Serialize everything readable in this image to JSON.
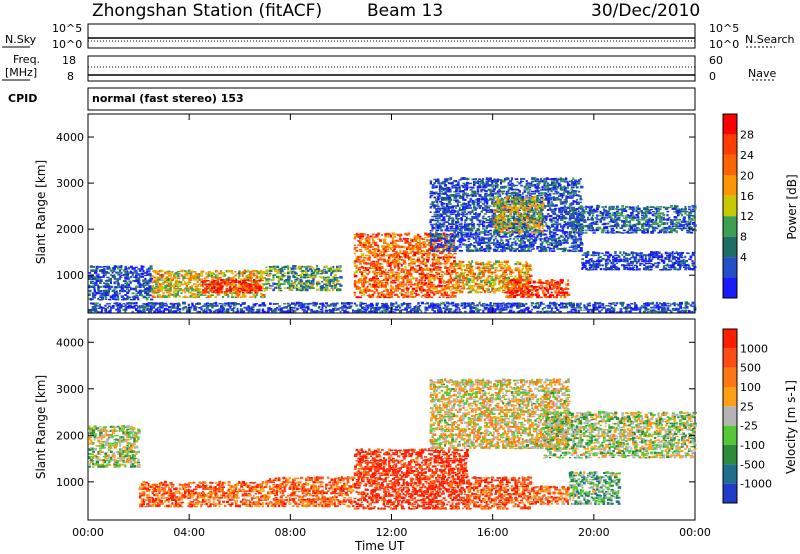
{
  "header": {
    "station": "Zhongshan Station (fitACF)",
    "beam": "Beam 13",
    "date": "30/Dec/2010"
  },
  "strips": {
    "nsky_label": "N.Sky",
    "nsearch_label": "N.Search",
    "nsky_ticks": [
      "10^5",
      "10^0"
    ],
    "nsearch_ticks": [
      "10^5",
      "10^0"
    ],
    "freq_label": "Freq.",
    "freq_unit": "[MHz]",
    "freq_ticks": [
      "18",
      "8"
    ],
    "nave_label": "Nave",
    "nave_ticks": [
      "60",
      "0"
    ],
    "cpid_label": "CPID",
    "cpid_text": "normal (fast stereo) 153"
  },
  "colors": {
    "power": [
      "#1a1aff",
      "#2250c8",
      "#1e6e64",
      "#3ca050",
      "#c8c800",
      "#ff9600",
      "#ff6400",
      "#ff3c00",
      "#ff0000"
    ],
    "velocity": [
      "#1e3cc8",
      "#1e6e8c",
      "#2d8c3c",
      "#55c837",
      "#b4b4b4",
      "#ffa014",
      "#ff7814",
      "#ff4b14",
      "#ff1e00"
    ]
  },
  "chart_data": [
    {
      "type": "heatmap",
      "panel": "power",
      "ylabel": "Slant Range [km]",
      "ylim": [
        180,
        4500
      ],
      "yticks": [
        "1000",
        "2000",
        "3000",
        "4000"
      ],
      "xlim": [
        0,
        24
      ],
      "xticks": [
        "00:00",
        "04:00",
        "08:00",
        "12:00",
        "16:00",
        "20:00",
        "00:00"
      ],
      "colorbar": {
        "title": "Power [dB]",
        "range": [
          0,
          32
        ],
        "labels": [
          "28",
          "24",
          "20",
          "16",
          "12",
          "8",
          "4"
        ]
      },
      "bands": [
        {
          "t0": 0.0,
          "t1": 2.5,
          "r0": 450,
          "r1": 1200,
          "level": 0.15
        },
        {
          "t0": 2.5,
          "t1": 7.0,
          "r0": 500,
          "r1": 1100,
          "level": 0.55
        },
        {
          "t0": 4.5,
          "t1": 6.8,
          "r0": 600,
          "r1": 900,
          "level": 0.9
        },
        {
          "t0": 7.0,
          "t1": 10.0,
          "r0": 650,
          "r1": 1200,
          "level": 0.35
        },
        {
          "t0": 10.5,
          "t1": 14.5,
          "r0": 500,
          "r1": 1900,
          "level": 0.75
        },
        {
          "t0": 14.5,
          "t1": 17.5,
          "r0": 600,
          "r1": 1300,
          "level": 0.6
        },
        {
          "t0": 16.5,
          "t1": 19.0,
          "r0": 500,
          "r1": 900,
          "level": 0.85
        },
        {
          "t0": 13.5,
          "t1": 19.5,
          "r0": 1500,
          "r1": 3100,
          "level": 0.15
        },
        {
          "t0": 16.0,
          "t1": 18.0,
          "r0": 1900,
          "r1": 2700,
          "level": 0.5
        },
        {
          "t0": 19.0,
          "t1": 24.0,
          "r0": 1900,
          "r1": 2500,
          "level": 0.2
        },
        {
          "t0": 19.5,
          "t1": 24.0,
          "r0": 1100,
          "r1": 1500,
          "level": 0.1
        },
        {
          "t0": 0.0,
          "t1": 24.0,
          "r0": 180,
          "r1": 400,
          "level": 0.12
        }
      ]
    },
    {
      "type": "heatmap",
      "panel": "velocity",
      "ylabel": "Slant Range [km]",
      "ylim": [
        180,
        4500
      ],
      "yticks": [
        "1000",
        "2000",
        "3000",
        "4000"
      ],
      "xlim": [
        0,
        24
      ],
      "xticks": [
        "00:00",
        "04:00",
        "08:00",
        "12:00",
        "16:00",
        "20:00",
        "00:00"
      ],
      "xlabel": "Time UT",
      "colorbar": {
        "title": "Velocity [m s-1]",
        "labels": [
          "1000",
          "500",
          "100",
          "25",
          "-25",
          "-100",
          "-500",
          "-1000"
        ]
      },
      "bands": [
        {
          "t0": 2.0,
          "t1": 7.0,
          "r0": 450,
          "r1": 1000,
          "level": 0.8
        },
        {
          "t0": 7.0,
          "t1": 10.5,
          "r0": 450,
          "r1": 1100,
          "level": 0.8
        },
        {
          "t0": 10.5,
          "t1": 15.0,
          "r0": 400,
          "r1": 1700,
          "level": 0.95
        },
        {
          "t0": 15.0,
          "t1": 17.5,
          "r0": 400,
          "r1": 1100,
          "level": 0.85
        },
        {
          "t0": 17.5,
          "t1": 19.0,
          "r0": 500,
          "r1": 900,
          "level": 0.75
        },
        {
          "t0": 19.0,
          "t1": 21.0,
          "r0": 500,
          "r1": 1200,
          "level": 0.35
        },
        {
          "t0": 13.5,
          "t1": 19.0,
          "r0": 1700,
          "r1": 3200,
          "level": 0.55
        },
        {
          "t0": 18.0,
          "t1": 24.0,
          "r0": 1500,
          "r1": 2500,
          "level": 0.45
        },
        {
          "t0": 0.0,
          "t1": 2.0,
          "r0": 1300,
          "r1": 2200,
          "level": 0.45
        }
      ]
    }
  ]
}
